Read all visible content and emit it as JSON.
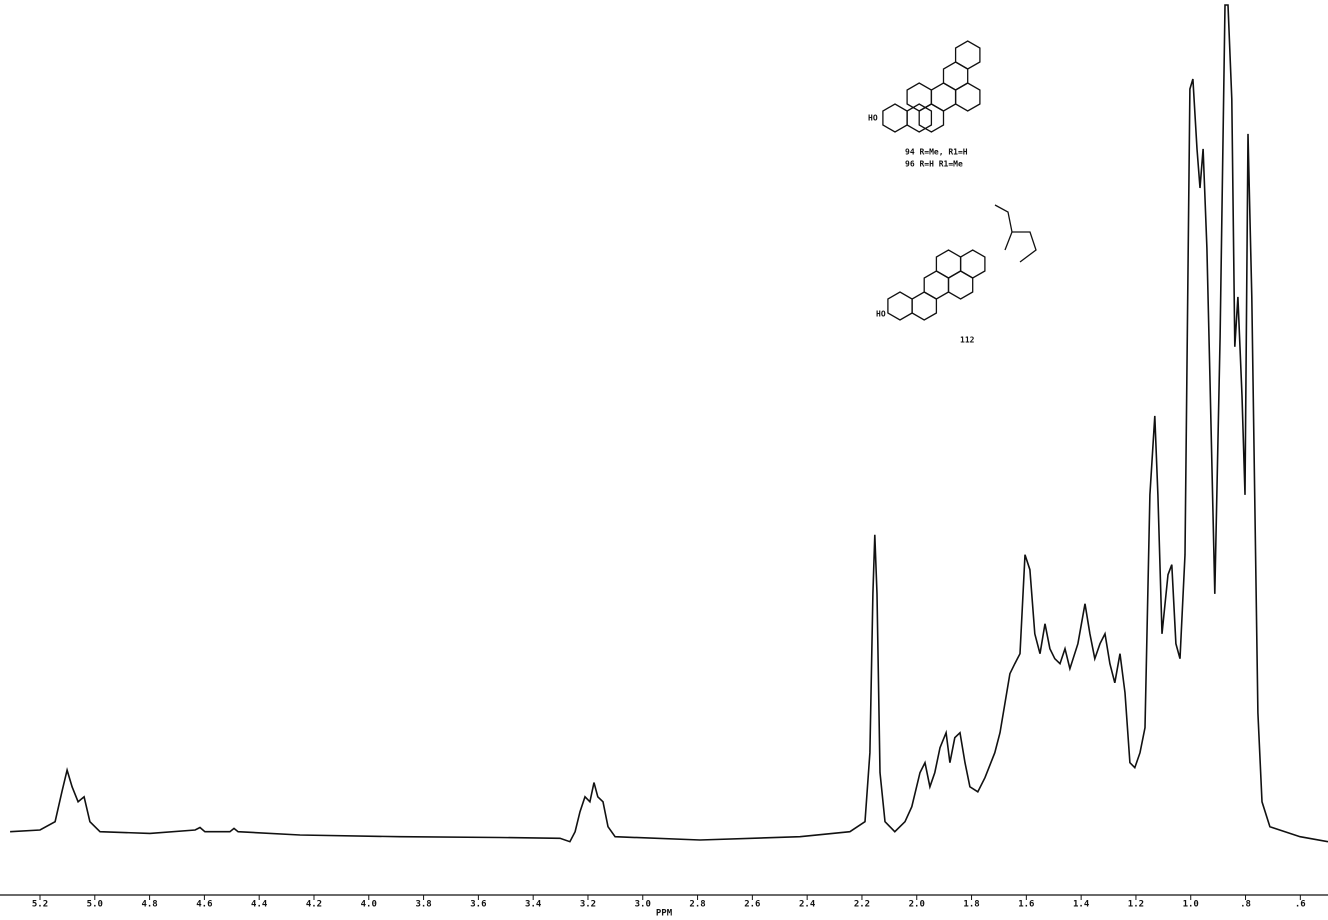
{
  "chart_data": {
    "type": "line",
    "x_label": "PPM",
    "color": "#111111",
    "x": [
      5.309,
      5.2,
      5.145,
      5.12,
      5.101,
      5.083,
      5.061,
      5.039,
      5.018,
      4.981,
      4.799,
      4.634,
      4.616,
      4.598,
      4.507,
      4.492,
      4.477,
      4.251,
      3.886,
      3.521,
      3.302,
      3.266,
      3.247,
      3.229,
      3.211,
      3.193,
      3.178,
      3.164,
      3.145,
      3.127,
      3.101,
      2.791,
      2.426,
      2.244,
      2.189,
      2.171,
      2.16,
      2.153,
      2.145,
      2.134,
      2.116,
      2.08,
      2.043,
      2.018,
      1.988,
      1.97,
      1.952,
      1.934,
      1.915,
      1.893,
      1.879,
      1.861,
      1.842,
      1.824,
      1.806,
      1.777,
      1.751,
      1.715,
      1.696,
      1.66,
      1.642,
      1.623,
      1.605,
      1.587,
      1.569,
      1.55,
      1.532,
      1.514,
      1.496,
      1.477,
      1.459,
      1.441,
      1.412,
      1.386,
      1.368,
      1.35,
      1.331,
      1.313,
      1.295,
      1.277,
      1.258,
      1.24,
      1.222,
      1.204,
      1.185,
      1.167,
      1.149,
      1.131,
      1.12,
      1.105,
      1.083,
      1.069,
      1.054,
      1.039,
      1.021,
      1.003,
      0.992,
      0.977,
      0.966,
      0.955,
      0.941,
      0.93,
      0.912,
      0.893,
      0.875,
      0.864,
      0.85,
      0.839,
      0.828,
      0.813,
      0.802,
      0.791,
      0.777,
      0.755,
      0.74,
      0.711,
      0.601,
      0.499
    ],
    "values": [
      0.6,
      0.8,
      1.8,
      5.4,
      8.0,
      6.0,
      4.2,
      4.8,
      1.8,
      0.6,
      0.4,
      0.8,
      1.1,
      0.6,
      0.6,
      1.0,
      0.6,
      0.2,
      0,
      -0.1,
      -0.2,
      -0.6,
      0.6,
      3.0,
      4.8,
      4.2,
      6.5,
      4.8,
      4.2,
      1.2,
      0,
      -0.4,
      0,
      0.6,
      1.8,
      10.1,
      29.2,
      36.3,
      29.2,
      7.7,
      1.8,
      0.6,
      1.8,
      3.6,
      7.7,
      8.9,
      6.0,
      7.7,
      10.7,
      12.5,
      8.9,
      11.9,
      12.5,
      8.9,
      6.0,
      5.4,
      7.1,
      10.1,
      12.5,
      19.6,
      20.8,
      22.0,
      33.9,
      32.1,
      24.4,
      22.0,
      25.6,
      22.6,
      21.4,
      20.8,
      22.6,
      20.2,
      23.2,
      28.0,
      24.4,
      21.4,
      23.2,
      24.4,
      20.8,
      18.5,
      22.0,
      17.3,
      8.9,
      8.3,
      10.1,
      13.1,
      41.1,
      50.6,
      41.1,
      24.4,
      31.5,
      32.7,
      23.2,
      21.4,
      33.9,
      89.9,
      91.1,
      82.7,
      78.0,
      82.7,
      70.8,
      55.4,
      29.2,
      60.1,
      100,
      100,
      88.7,
      58.9,
      64.9,
      53.0,
      41.1,
      84.5,
      64.9,
      14.9,
      4.2,
      1.2,
      0,
      -0.6
    ],
    "xlim": [
      5.346,
      0.499
    ],
    "ylim": [
      -1,
      100
    ],
    "xticks": [
      5.2,
      {
        "value": 5.0,
        "label": "5.0"
      },
      4.8,
      4.6,
      4.4,
      4.2,
      {
        "value": 4.0,
        "label": "4.0"
      },
      3.8,
      3.6,
      3.4,
      3.2,
      {
        "value": 3.0,
        "label": "3.0"
      },
      2.8,
      2.6,
      2.4,
      2.2,
      {
        "value": 2.0,
        "label": "2.0"
      },
      1.8,
      1.6,
      1.4,
      1.2,
      {
        "value": 1.0,
        "label": "1.0"
      },
      {
        "value": 0.8,
        "label": ".8"
      },
      {
        "value": 0.6,
        "label": ".6"
      }
    ],
    "annotations": [
      "94 R=Me, R1=H",
      "96 R=H R1=Me",
      "HO",
      "112",
      "HO"
    ]
  }
}
